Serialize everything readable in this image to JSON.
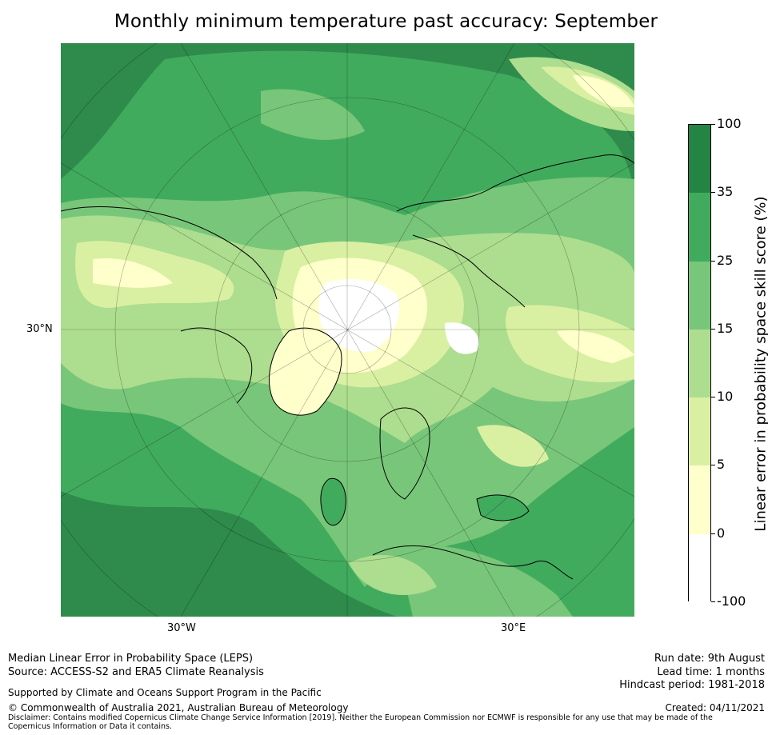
{
  "title": "Monthly minimum temperature past accuracy: September",
  "map": {
    "projection": "north-polar-stereographic",
    "graticule_labels": {
      "left": "30°N",
      "bottom_left": "30°W",
      "bottom_right": "30°E"
    },
    "colors": {
      "ocean_dominant": "#2e8b4c",
      "coastline": "#000000"
    }
  },
  "colorbar": {
    "label": "Linear error in probability space skill score (%)",
    "bins": [
      {
        "from": "-100",
        "to": "0",
        "color": "#ffffff"
      },
      {
        "from": "0",
        "to": "5",
        "color": "#ffffcc"
      },
      {
        "from": "5",
        "to": "10",
        "color": "#d9f0a3"
      },
      {
        "from": "10",
        "to": "15",
        "color": "#addd8e"
      },
      {
        "from": "15",
        "to": "25",
        "color": "#78c679"
      },
      {
        "from": "25",
        "to": "35",
        "color": "#41ab5d"
      },
      {
        "from": "35",
        "to": "100",
        "color": "#238443"
      }
    ],
    "ticks": [
      "100",
      "35",
      "25",
      "15",
      "10",
      "5",
      "0",
      "-100"
    ]
  },
  "footer": {
    "left_line1": "Median Linear Error in Probability Space (LEPS)",
    "left_line2": "Source: ACCESS-S2 and ERA5 Climate Reanalysis",
    "support": "Supported by Climate and Oceans Support Program in the Pacific",
    "copyright": "© Commonwealth of Australia 2021, Australian Bureau of Meteorology",
    "disclaimer": "Disclaimer: Contains modified Copernicus Climate Change Service Information [2019]. Neither the European Commission nor ECMWF is responsible for any use that may be made of the Copernicus Information or Data it contains.",
    "run_date": "Run date: 9th August",
    "lead_time": "Lead time: 1 months",
    "hindcast": "Hindcast period: 1981-2018",
    "created": "Created: 04/11/2021"
  }
}
